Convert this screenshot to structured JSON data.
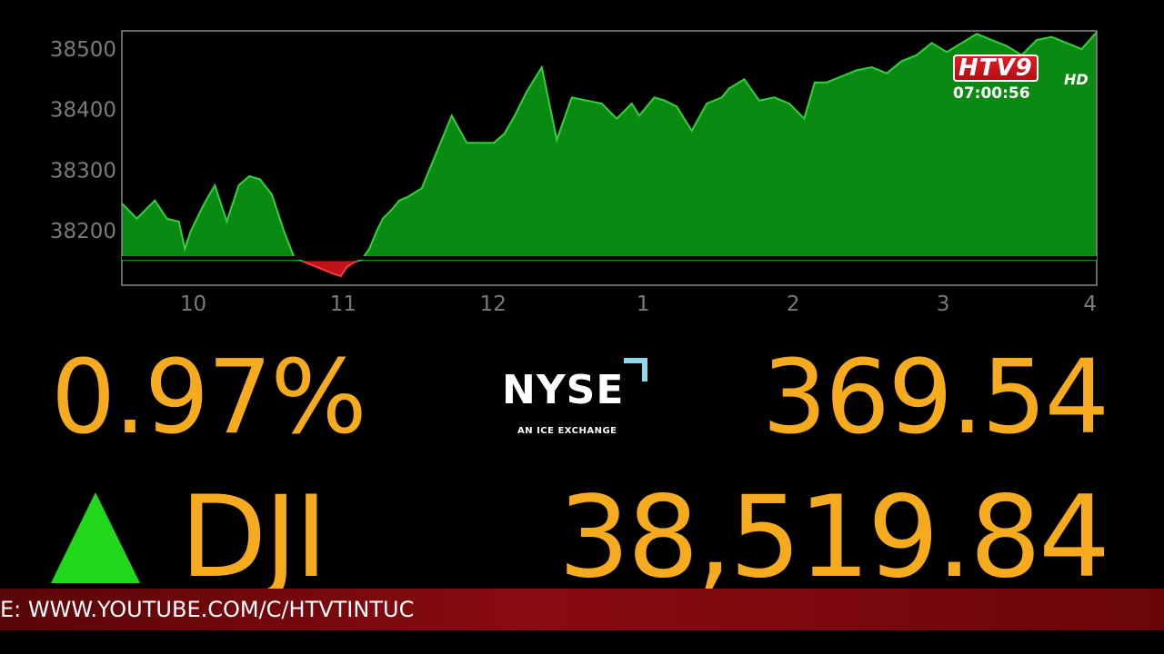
{
  "chart_data": {
    "type": "area",
    "title": "",
    "xlabel": "",
    "ylabel": "",
    "baseline": 38150,
    "ylim": [
      38110,
      38530
    ],
    "xlim": [
      9.5,
      16.0
    ],
    "yticks": [
      38200,
      38300,
      38400,
      38500
    ],
    "ytick_labels": [
      "38200",
      "38300",
      "38400",
      "38500"
    ],
    "xticks": [
      10,
      11,
      12,
      13,
      14,
      15,
      16
    ],
    "xtick_labels": [
      "10",
      "11",
      "12",
      "1",
      "2",
      "3",
      "4"
    ],
    "up_color": "#0a8a12",
    "down_color": "#c0141c",
    "x": [
      9.5,
      9.6,
      9.72,
      9.8,
      9.88,
      9.92,
      9.96,
      10.0,
      10.05,
      10.12,
      10.2,
      10.28,
      10.35,
      10.42,
      10.5,
      10.58,
      10.65,
      10.72,
      10.8,
      10.9,
      10.96,
      11.0,
      11.05,
      11.1,
      11.15,
      11.2,
      11.24,
      11.3,
      11.35,
      11.4,
      11.5,
      11.6,
      11.7,
      11.8,
      11.9,
      11.98,
      12.05,
      12.12,
      12.2,
      12.3,
      12.4,
      12.5,
      12.6,
      12.7,
      12.8,
      12.9,
      12.95,
      13.05,
      13.12,
      13.2,
      13.3,
      13.4,
      13.5,
      13.55,
      13.65,
      13.75,
      13.85,
      13.95,
      14.05,
      14.12,
      14.2,
      14.3,
      14.4,
      14.5,
      14.6,
      14.7,
      14.8,
      14.9,
      15.0,
      15.1,
      15.2,
      15.3,
      15.4,
      15.5,
      15.6,
      15.7,
      15.8,
      15.9,
      16.0
    ],
    "y": [
      38245,
      38220,
      38250,
      38220,
      38215,
      38170,
      38200,
      38220,
      38245,
      38275,
      38215,
      38275,
      38290,
      38285,
      38260,
      38200,
      38155,
      38148,
      38140,
      38130,
      38125,
      38140,
      38148,
      38152,
      38170,
      38200,
      38220,
      38235,
      38250,
      38255,
      38270,
      38330,
      38390,
      38345,
      38345,
      38345,
      38360,
      38390,
      38430,
      38470,
      38350,
      38420,
      38415,
      38410,
      38385,
      38410,
      38390,
      38420,
      38415,
      38405,
      38365,
      38410,
      38420,
      38435,
      38450,
      38415,
      38420,
      38410,
      38385,
      38445,
      38445,
      38455,
      38465,
      38470,
      38460,
      38480,
      38490,
      38510,
      38495,
      38510,
      38525,
      38515,
      38505,
      38490,
      38515,
      38520,
      38510,
      38500,
      38528
    ]
  },
  "stats": {
    "percent_change": "0.97%",
    "points_change": "369.54",
    "direction": "up",
    "symbol": "DJI",
    "index_value": "38,519.84"
  },
  "exchange": {
    "name": "NYSE",
    "tagline": "AN ICE EXCHANGE"
  },
  "broadcast": {
    "channel": "HTV9",
    "quality": "HD",
    "clock": "07:00:56",
    "ticker": "E: WWW.YOUTUBE.COM/C/HTVTINTUC"
  }
}
